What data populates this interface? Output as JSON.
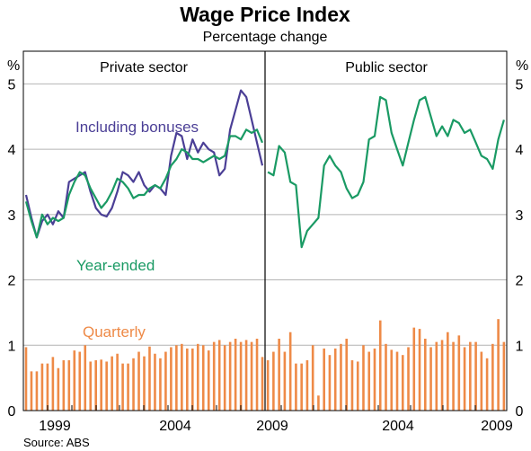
{
  "chart_data": {
    "type": "line",
    "title": "Wage Price Index",
    "subtitle": "Percentage change",
    "unit_left": "%",
    "unit_right": "%",
    "source": "Source: ABS",
    "ylim": [
      0,
      5.5
    ],
    "yticks": [
      "0",
      "1",
      "2",
      "3",
      "4",
      "5"
    ],
    "grid": true,
    "colors": {
      "bonuses": "#4b3f96",
      "year_ended": "#1a9a64",
      "quarterly": "#ee8a47"
    },
    "panels": [
      {
        "title": "Private sector",
        "x_tick_labels": [
          "1999",
          "2004",
          "2009"
        ],
        "annotations": {
          "bonuses": "Including bonuses",
          "year_ended": "Year-ended",
          "quarterly": "Quarterly"
        },
        "series": [
          {
            "name": "Including bonuses",
            "type": "line",
            "values": [
              3.3,
              2.95,
              2.65,
              2.9,
              3.0,
              2.85,
              3.05,
              2.95,
              3.5,
              3.55,
              3.6,
              3.65,
              3.35,
              3.1,
              3.0,
              2.97,
              3.1,
              3.35,
              3.65,
              3.6,
              3.5,
              3.65,
              3.45,
              3.35,
              3.45,
              3.4,
              3.3,
              3.9,
              4.25,
              4.2,
              3.85,
              4.15,
              3.95,
              4.1,
              4.0,
              3.95,
              3.6,
              3.7,
              4.3,
              4.6,
              4.9,
              4.8,
              4.45,
              4.1,
              3.75
            ]
          },
          {
            "name": "Year-ended",
            "type": "line",
            "values": [
              3.2,
              2.9,
              2.65,
              3.0,
              2.85,
              2.95,
              2.9,
              2.95,
              3.3,
              3.5,
              3.65,
              3.6,
              3.4,
              3.25,
              3.1,
              3.2,
              3.35,
              3.55,
              3.5,
              3.4,
              3.25,
              3.3,
              3.3,
              3.4,
              3.45,
              3.4,
              3.55,
              3.75,
              3.85,
              4.0,
              3.95,
              3.85,
              3.85,
              3.8,
              3.85,
              3.9,
              3.85,
              3.9,
              4.2,
              4.2,
              4.15,
              4.3,
              4.25,
              4.3,
              4.1
            ]
          },
          {
            "name": "Quarterly",
            "type": "bar",
            "values": [
              0.97,
              0.6,
              0.6,
              0.72,
              0.72,
              0.82,
              0.65,
              0.77,
              0.77,
              0.92,
              0.9,
              1.0,
              0.75,
              0.77,
              0.78,
              0.75,
              0.83,
              0.87,
              0.72,
              0.72,
              0.8,
              0.9,
              0.83,
              0.98,
              0.87,
              0.8,
              0.9,
              0.97,
              1.0,
              1.02,
              0.95,
              0.95,
              1.02,
              1.0,
              0.92,
              1.05,
              1.08,
              1.0,
              1.05,
              1.1,
              1.05,
              1.08,
              1.05,
              1.1,
              0.82
            ]
          }
        ]
      },
      {
        "title": "Public sector",
        "x_tick_labels": [
          "2004",
          "2009"
        ],
        "series": [
          {
            "name": "Year-ended",
            "type": "line",
            "values": [
              3.65,
              3.6,
              4.05,
              3.95,
              3.5,
              3.45,
              2.5,
              2.75,
              2.85,
              2.95,
              3.75,
              3.9,
              3.75,
              3.65,
              3.4,
              3.25,
              3.3,
              3.5,
              4.15,
              4.2,
              4.8,
              4.75,
              4.25,
              4.0,
              3.75,
              4.1,
              4.45,
              4.75,
              4.8,
              4.5,
              4.2,
              4.35,
              4.2,
              4.45,
              4.4,
              4.25,
              4.3,
              4.1,
              3.9,
              3.85,
              3.7,
              4.15,
              4.45
            ]
          },
          {
            "name": "Quarterly",
            "type": "bar",
            "values": [
              0.77,
              0.9,
              1.1,
              0.9,
              1.2,
              0.72,
              0.72,
              0.77,
              1.0,
              0.23,
              0.95,
              0.85,
              0.95,
              1.02,
              1.1,
              0.77,
              0.75,
              1.0,
              0.9,
              0.95,
              1.38,
              1.02,
              0.93,
              0.9,
              0.85,
              0.97,
              1.27,
              1.25,
              1.1,
              0.97,
              1.05,
              1.08,
              1.2,
              1.05,
              1.15,
              0.97,
              1.05,
              1.05,
              0.9,
              0.8,
              1.02,
              1.4,
              1.05
            ]
          }
        ]
      }
    ]
  }
}
